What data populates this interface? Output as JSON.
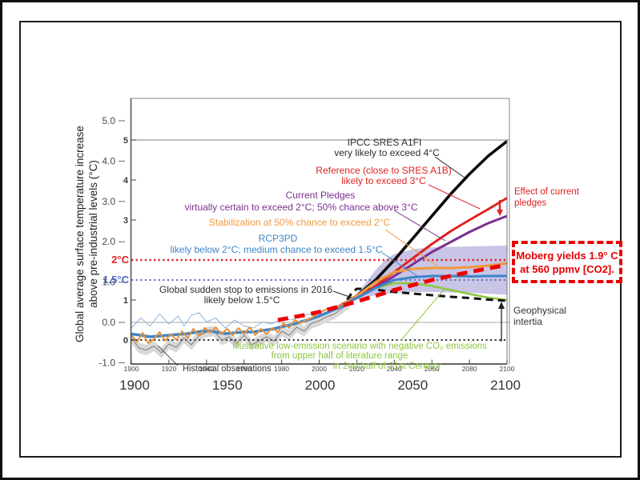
{
  "chart_data": {
    "type": "line",
    "ylabel_line1": "Global average surface temperature increase",
    "ylabel_line2": "above pre-industrial levels (°C)",
    "xlim": [
      1900,
      2100
    ],
    "ylim": [
      -0.6,
      5.0
    ],
    "grid": "minimal",
    "x_ticks_major": [
      "1900",
      "1950",
      "2000",
      "2050",
      "2100"
    ],
    "x_ticks_minor": [
      "1900",
      "1920",
      "1940",
      "1960",
      "1980",
      "2000",
      "2020",
      "2040",
      "2060",
      "2080",
      "2100"
    ],
    "y_ticks_outer": [
      "5.0",
      "4.0",
      "3.0",
      "2.0",
      "1.0",
      "0.0",
      "-1.0"
    ],
    "y_ticks_inner": [
      "5",
      "4",
      "3",
      "1",
      "0"
    ],
    "thresholds": [
      {
        "label": "2°C",
        "value": 2,
        "color": "#dd2222",
        "width": 2.6
      },
      {
        "label": "1.5°C",
        "value": 1.5,
        "color": "#6b6bc0",
        "width": 2.0
      },
      {
        "label": "",
        "value": 0,
        "color": "#1a1a1a",
        "width": 1.8
      }
    ],
    "band": {
      "name": "projection uncertainty range",
      "color": "#b3aedd",
      "upper": [
        [
          2020,
          1.15
        ],
        [
          2025,
          1.45
        ],
        [
          2030,
          1.75
        ],
        [
          2035,
          2.0
        ],
        [
          2040,
          2.15
        ],
        [
          2050,
          2.27
        ],
        [
          2060,
          2.32
        ],
        [
          2080,
          2.34
        ],
        [
          2100,
          2.36
        ]
      ],
      "lower": [
        [
          2020,
          1.02
        ],
        [
          2030,
          1.12
        ],
        [
          2040,
          1.18
        ],
        [
          2050,
          1.2
        ],
        [
          2060,
          1.2
        ],
        [
          2080,
          1.18
        ],
        [
          2100,
          1.13
        ]
      ]
    },
    "series": [
      {
        "id": "hist_gray",
        "name": "historical observations (dataset 1)",
        "color": "#808080",
        "width": 1,
        "band": 0.13,
        "points": [
          [
            1900,
            0.05
          ],
          [
            1904,
            -0.2
          ],
          [
            1908,
            -0.25
          ],
          [
            1912,
            -0.15
          ],
          [
            1916,
            -0.32
          ],
          [
            1920,
            -0.1
          ],
          [
            1924,
            -0.18
          ],
          [
            1928,
            0.05
          ],
          [
            1932,
            -0.12
          ],
          [
            1936,
            0.1
          ],
          [
            1940,
            0.2
          ],
          [
            1944,
            0.22
          ],
          [
            1948,
            0.0
          ],
          [
            1952,
            0.08
          ],
          [
            1956,
            -0.08
          ],
          [
            1960,
            0.12
          ],
          [
            1964,
            -0.12
          ],
          [
            1968,
            -0.02
          ],
          [
            1972,
            0.08
          ],
          [
            1976,
            -0.02
          ],
          [
            1980,
            0.22
          ],
          [
            1984,
            0.12
          ],
          [
            1988,
            0.32
          ],
          [
            1992,
            0.22
          ],
          [
            1996,
            0.42
          ],
          [
            2000,
            0.48
          ],
          [
            2004,
            0.58
          ],
          [
            2008,
            0.65
          ],
          [
            2012,
            0.78
          ],
          [
            2016,
            0.92
          ]
        ]
      },
      {
        "id": "hist_blue_thin",
        "name": "historical observations (dataset 2)",
        "color": "#8ab4dc",
        "width": 1,
        "points": [
          [
            1900,
            0.3
          ],
          [
            1905,
            0.55
          ],
          [
            1910,
            0.35
          ],
          [
            1915,
            0.65
          ],
          [
            1920,
            0.4
          ],
          [
            1925,
            0.6
          ],
          [
            1928,
            0.35
          ],
          [
            1932,
            0.62
          ],
          [
            1936,
            0.68
          ],
          [
            1940,
            0.45
          ],
          [
            1945,
            0.55
          ],
          [
            1950,
            0.3
          ],
          [
            1955,
            0.5
          ],
          [
            1960,
            0.35
          ],
          [
            1965,
            0.3
          ],
          [
            1970,
            0.45
          ],
          [
            1975,
            0.4
          ],
          [
            1980,
            0.55
          ],
          [
            1985,
            0.5
          ],
          [
            1990,
            0.6
          ],
          [
            1995,
            0.65
          ],
          [
            2000,
            0.7
          ],
          [
            2005,
            0.8
          ],
          [
            2010,
            0.85
          ]
        ]
      },
      {
        "id": "low_emission",
        "name": "Illustrative low-emission scenario with negative CO2 emissions",
        "color": "#8dc63f",
        "width": 2.6,
        "points": [
          [
            2010,
            0.82
          ],
          [
            2020,
            1.05
          ],
          [
            2030,
            1.3
          ],
          [
            2040,
            1.42
          ],
          [
            2050,
            1.42
          ],
          [
            2060,
            1.35
          ],
          [
            2070,
            1.25
          ],
          [
            2080,
            1.15
          ],
          [
            2090,
            1.06
          ],
          [
            2100,
            1.0
          ]
        ]
      },
      {
        "id": "sudden_stop",
        "name": "Global sudden stop to emissions in 2016",
        "color": "#111111",
        "width": 3,
        "dash": "9 6",
        "points": [
          [
            2010,
            0.82
          ],
          [
            2014,
            0.95
          ],
          [
            2017,
            1.15
          ],
          [
            2020,
            1.28
          ],
          [
            2025,
            1.28
          ],
          [
            2030,
            1.26
          ],
          [
            2040,
            1.2
          ],
          [
            2050,
            1.16
          ],
          [
            2060,
            1.12
          ],
          [
            2070,
            1.08
          ],
          [
            2080,
            1.05
          ],
          [
            2090,
            1.01
          ],
          [
            2100,
            0.98
          ]
        ]
      },
      {
        "id": "a1fi",
        "name": "IPCC SRES A1FI",
        "color": "#0a0a0a",
        "width": 3.6,
        "points": [
          [
            2010,
            0.82
          ],
          [
            2020,
            1.1
          ],
          [
            2030,
            1.5
          ],
          [
            2040,
            2.0
          ],
          [
            2050,
            2.55
          ],
          [
            2060,
            3.1
          ],
          [
            2070,
            3.65
          ],
          [
            2080,
            4.15
          ],
          [
            2090,
            4.6
          ],
          [
            2100,
            4.97
          ]
        ]
      },
      {
        "id": "reference",
        "name": "Reference (close to SRES A1B)",
        "color": "#e02222",
        "width": 3,
        "points": [
          [
            2010,
            0.82
          ],
          [
            2020,
            1.05
          ],
          [
            2030,
            1.35
          ],
          [
            2040,
            1.7
          ],
          [
            2050,
            2.05
          ],
          [
            2060,
            2.4
          ],
          [
            2070,
            2.72
          ],
          [
            2080,
            3.0
          ],
          [
            2090,
            3.27
          ],
          [
            2100,
            3.55
          ]
        ]
      },
      {
        "id": "pledges",
        "name": "Current Pledges",
        "color": "#7c3090",
        "width": 3,
        "points": [
          [
            2010,
            0.82
          ],
          [
            2020,
            1.05
          ],
          [
            2030,
            1.3
          ],
          [
            2040,
            1.6
          ],
          [
            2050,
            1.9
          ],
          [
            2060,
            2.2
          ],
          [
            2070,
            2.45
          ],
          [
            2080,
            2.7
          ],
          [
            2090,
            2.92
          ],
          [
            2100,
            3.1
          ]
        ]
      },
      {
        "id": "stabilization",
        "name": "Stabilization at 50% chance to exceed 2°C",
        "color": "#f0993e",
        "width": 3,
        "points": [
          [
            2010,
            0.82
          ],
          [
            2020,
            1.1
          ],
          [
            2030,
            1.45
          ],
          [
            2040,
            1.7
          ],
          [
            2050,
            1.78
          ],
          [
            2060,
            1.8
          ],
          [
            2070,
            1.8
          ],
          [
            2080,
            1.82
          ],
          [
            2090,
            1.86
          ],
          [
            2100,
            1.92
          ]
        ]
      },
      {
        "id": "rcp3pd",
        "name": "RCP3PD",
        "color": "#3d85c8",
        "width": 3,
        "points": [
          [
            2010,
            0.82
          ],
          [
            2020,
            1.05
          ],
          [
            2030,
            1.3
          ],
          [
            2040,
            1.5
          ],
          [
            2050,
            1.57
          ],
          [
            2060,
            1.6
          ],
          [
            2070,
            1.6
          ],
          [
            2080,
            1.59
          ],
          [
            2090,
            1.6
          ],
          [
            2100,
            1.6
          ]
        ]
      },
      {
        "id": "hist_blue_smooth",
        "name": "smoothed observations",
        "color": "#3d85c8",
        "width": 3.6,
        "points": [
          [
            1900,
            0.15
          ],
          [
            1905,
            0.12
          ],
          [
            1910,
            0.08
          ],
          [
            1915,
            0.1
          ],
          [
            1920,
            0.12
          ],
          [
            1925,
            0.14
          ],
          [
            1930,
            0.16
          ],
          [
            1935,
            0.2
          ],
          [
            1940,
            0.23
          ],
          [
            1945,
            0.2
          ],
          [
            1950,
            0.16
          ],
          [
            1955,
            0.18
          ],
          [
            1960,
            0.2
          ],
          [
            1965,
            0.2
          ],
          [
            1970,
            0.24
          ],
          [
            1975,
            0.27
          ],
          [
            1980,
            0.33
          ],
          [
            1985,
            0.38
          ],
          [
            1990,
            0.45
          ],
          [
            1995,
            0.52
          ],
          [
            2000,
            0.6
          ],
          [
            2005,
            0.7
          ],
          [
            2010,
            0.8
          ],
          [
            2014,
            0.88
          ],
          [
            2016,
            0.93
          ]
        ]
      },
      {
        "id": "hist_obs_orange",
        "name": "annual observations",
        "color": "#e8913c",
        "width": 2,
        "points": [
          [
            1900,
            0.12
          ],
          [
            1903,
            -0.05
          ],
          [
            1906,
            0.18
          ],
          [
            1909,
            -0.08
          ],
          [
            1912,
            0.02
          ],
          [
            1915,
            0.2
          ],
          [
            1918,
            -0.02
          ],
          [
            1921,
            0.15
          ],
          [
            1924,
            0.0
          ],
          [
            1927,
            0.22
          ],
          [
            1930,
            0.05
          ],
          [
            1933,
            0.28
          ],
          [
            1936,
            0.1
          ],
          [
            1939,
            0.3
          ],
          [
            1942,
            0.18
          ],
          [
            1945,
            0.32
          ],
          [
            1948,
            0.15
          ],
          [
            1951,
            0.28
          ],
          [
            1954,
            0.12
          ],
          [
            1957,
            0.3
          ],
          [
            1960,
            0.15
          ],
          [
            1963,
            0.32
          ],
          [
            1966,
            0.12
          ],
          [
            1969,
            0.28
          ],
          [
            1972,
            0.15
          ],
          [
            1975,
            0.3
          ],
          [
            1978,
            0.2
          ],
          [
            1981,
            0.42
          ],
          [
            1984,
            0.3
          ],
          [
            1987,
            0.5
          ],
          [
            1990,
            0.42
          ],
          [
            1993,
            0.5
          ],
          [
            1996,
            0.55
          ],
          [
            1999,
            0.68
          ],
          [
            2002,
            0.72
          ],
          [
            2005,
            0.8
          ],
          [
            2008,
            0.78
          ],
          [
            2011,
            0.85
          ],
          [
            2014,
            0.95
          ],
          [
            2016,
            1.0
          ]
        ]
      },
      {
        "id": "moberg",
        "name": "Moberg 1.9°C at 560 ppmv CO2",
        "color": "#ee0000",
        "width": 5,
        "dash": "13 8",
        "points": [
          [
            1978,
            0.5
          ],
          [
            1985,
            0.56
          ],
          [
            1992,
            0.62
          ],
          [
            2000,
            0.7
          ],
          [
            2010,
            0.83
          ],
          [
            2020,
            0.96
          ],
          [
            2040,
            1.25
          ],
          [
            2060,
            1.5
          ],
          [
            2080,
            1.7
          ],
          [
            2100,
            1.88
          ]
        ]
      }
    ]
  },
  "annotations": {
    "ipcc": {
      "line1": "IPCC SRES A1FI",
      "line2": "very likely to exceed 4°C"
    },
    "reference": {
      "line1": "Reference (close to SRES A1B)",
      "line2": "likely to exceed 3°C"
    },
    "pledges": {
      "line1": "Current Pledges",
      "line2": "virtually certain to exceed 2°C; 50% chance above 3°C"
    },
    "stabilization": {
      "line1": "Stabilization at 50% chance to exceed 2°C"
    },
    "rcp3pd": {
      "line1": "RCP3PD",
      "line2": "likely below 2°C; medium chance to exceed 1.5°C"
    },
    "sudden_stop": {
      "line1": "Global sudden stop to emissions in 2016",
      "line2": "likely below 1.5°C"
    },
    "low_emission": {
      "line1": "Illustrative low-emission scenario with negative CO₂ emissions",
      "line2": "from upper half of literature range",
      "line3": "in 2nd half of 21st Century"
    },
    "historical": {
      "label": "Historical observations"
    },
    "effect": {
      "line1": "Effect of current",
      "line2": "pledges"
    },
    "geophysical": {
      "line1": "Geophysical",
      "line2": "intertia"
    },
    "thresholds": {
      "two_deg": "2°C",
      "one_half_deg": "1.5°C"
    },
    "moberg": {
      "line1": "Moberg yields 1.9° C",
      "line2": "at 560 ppmv [CO2]."
    }
  }
}
